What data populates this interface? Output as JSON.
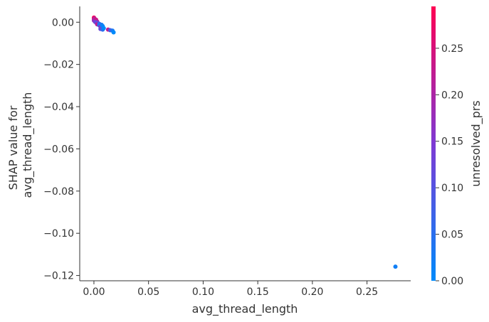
{
  "chart_data": {
    "type": "scatter",
    "title": "",
    "xlabel": "avg_thread_length",
    "ylabel": [
      "SHAP value for",
      "avg_thread_length"
    ],
    "xlim": [
      -0.013,
      0.29
    ],
    "ylim": [
      -0.1225,
      0.0075
    ],
    "xticks": [
      0.0,
      0.05,
      0.1,
      0.15,
      0.2,
      0.25
    ],
    "xtick_labels": [
      "0.00",
      "0.05",
      "0.10",
      "0.15",
      "0.20",
      "0.25"
    ],
    "yticks": [
      0.0,
      -0.02,
      -0.04,
      -0.06,
      -0.08,
      -0.1,
      -0.12
    ],
    "ytick_labels": [
      "0.00",
      "−0.02",
      "−0.04",
      "−0.06",
      "−0.08",
      "−0.10",
      "−0.12"
    ],
    "colorbar": {
      "label": "unresolved_prs",
      "range": [
        0.0,
        0.295
      ],
      "ticks": [
        0.0,
        0.05,
        0.1,
        0.15,
        0.2,
        0.25
      ],
      "tick_labels": [
        "0.00",
        "0.05",
        "0.10",
        "0.15",
        "0.20",
        "0.25"
      ],
      "colors": [
        "#008afb",
        "#7e3ad4",
        "#ff0052"
      ]
    },
    "grid": false,
    "points": [
      {
        "x": 0.0,
        "y": 0.0022,
        "c": 0.29
      },
      {
        "x": 0.0,
        "y": 0.0015,
        "c": 0.25
      },
      {
        "x": 0.0005,
        "y": 0.0018,
        "c": 0.22
      },
      {
        "x": 0.001,
        "y": 0.001,
        "c": 0.28
      },
      {
        "x": 0.0,
        "y": 0.0008,
        "c": 0.18
      },
      {
        "x": 0.002,
        "y": 0.0012,
        "c": 0.24
      },
      {
        "x": 0.001,
        "y": 0.0002,
        "c": 0.15
      },
      {
        "x": 0.003,
        "y": 0.0003,
        "c": 0.2
      },
      {
        "x": 0.002,
        "y": -0.0002,
        "c": 0.12
      },
      {
        "x": 0.004,
        "y": -0.0006,
        "c": 0.1
      },
      {
        "x": 0.003,
        "y": -0.001,
        "c": 0.22
      },
      {
        "x": 0.005,
        "y": -0.0008,
        "c": 0.05
      },
      {
        "x": 0.005,
        "y": -0.0015,
        "c": 0.02
      },
      {
        "x": 0.006,
        "y": -0.002,
        "c": 0.18
      },
      {
        "x": 0.007,
        "y": -0.0012,
        "c": 0.03
      },
      {
        "x": 0.007,
        "y": -0.0024,
        "c": 0.08
      },
      {
        "x": 0.008,
        "y": -0.0018,
        "c": 0.01
      },
      {
        "x": 0.006,
        "y": -0.0032,
        "c": 0.12
      },
      {
        "x": 0.008,
        "y": -0.0035,
        "c": 0.05
      },
      {
        "x": 0.009,
        "y": -0.0028,
        "c": 0.0
      },
      {
        "x": 0.013,
        "y": -0.0035,
        "c": 0.22
      },
      {
        "x": 0.015,
        "y": -0.0038,
        "c": 0.08
      },
      {
        "x": 0.017,
        "y": -0.004,
        "c": 0.03
      },
      {
        "x": 0.018,
        "y": -0.0048,
        "c": 0.0
      },
      {
        "x": 0.276,
        "y": -0.1158,
        "c": 0.02
      }
    ]
  }
}
